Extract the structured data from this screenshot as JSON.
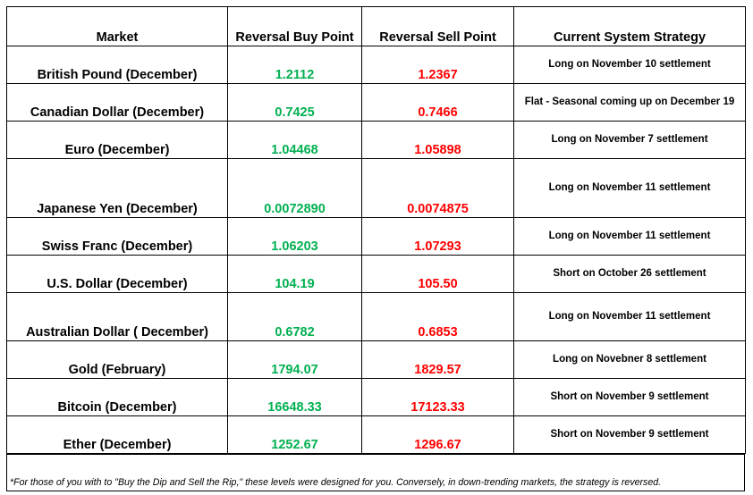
{
  "headers": {
    "market": "Market",
    "buy": "Reversal Buy Point",
    "sell": "Reversal Sell Point",
    "strategy": "Current System Strategy"
  },
  "rows": [
    {
      "market": "British Pound (December)",
      "buy": "1.2112",
      "sell": "1.2367",
      "strategy": "Long on November 10 settlement"
    },
    {
      "market": "Canadian Dollar (December)",
      "buy": "0.7425",
      "sell": "0.7466",
      "strategy": "Flat - Seasonal coming up on December 19"
    },
    {
      "market": "Euro (December)",
      "buy": "1.04468",
      "sell": "1.05898",
      "strategy": "Long on November 7 settlement"
    },
    {
      "market": "Japanese Yen (December)",
      "buy": "0.0072890",
      "sell": "0.0074875",
      "strategy": "Long on November 11 settlement"
    },
    {
      "market": "Swiss Franc (December)",
      "buy": "1.06203",
      "sell": "1.07293",
      "strategy": "Long on November 11 settlement"
    },
    {
      "market": "U.S. Dollar (December)",
      "buy": "104.19",
      "sell": "105.50",
      "strategy": "Short on October 26 settlement"
    },
    {
      "market": "Australian Dollar ( December)",
      "buy": "0.6782",
      "sell": "0.6853",
      "strategy": "Long on November 11 settlement"
    },
    {
      "market": "Gold (February)",
      "buy": "1794.07",
      "sell": "1829.57",
      "strategy": "Long on Novebner 8 settlement"
    },
    {
      "market": "Bitcoin (December)",
      "buy": "16648.33",
      "sell": "17123.33",
      "strategy": "Short on November 9 settlement"
    },
    {
      "market": "Ether (December)",
      "buy": "1252.67",
      "sell": "1296.67",
      "strategy": "Short on November 9 settlement"
    }
  ],
  "footnote": "*For those of you with to \"Buy the Dip and Sell the Rip,\" these levels were designed for you. Conversely, in down-trending markets, the strategy is reversed.",
  "colors": {
    "buy": "#00b050",
    "sell": "#ff0000"
  }
}
